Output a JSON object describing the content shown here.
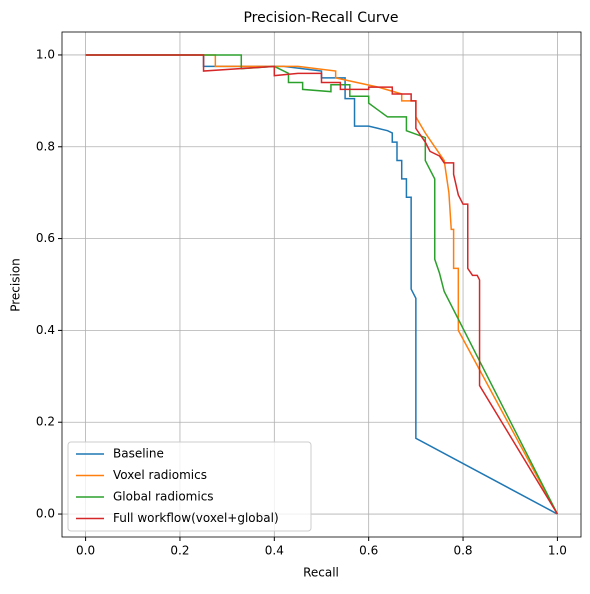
{
  "chart_data": {
    "type": "line",
    "title": "Precision-Recall Curve",
    "xlabel": "Recall",
    "ylabel": "Precision",
    "xlim": [
      -0.05,
      1.05
    ],
    "ylim": [
      -0.05,
      1.05
    ],
    "xticks": [
      {
        "value": 0,
        "label": "0.0"
      },
      {
        "value": 0.2,
        "label": "0.2"
      },
      {
        "value": 0.4,
        "label": "0.4"
      },
      {
        "value": 0.6,
        "label": "0.6"
      },
      {
        "value": 0.8,
        "label": "0.8"
      },
      {
        "value": 1,
        "label": "1.0"
      }
    ],
    "yticks": [
      {
        "value": 0,
        "label": "0.0"
      },
      {
        "value": 0.2,
        "label": "0.2"
      },
      {
        "value": 0.4,
        "label": "0.4"
      },
      {
        "value": 0.6,
        "label": "0.6"
      },
      {
        "value": 0.8,
        "label": "0.8"
      },
      {
        "value": 1,
        "label": "1.0"
      }
    ],
    "grid": true,
    "legend": "lower left",
    "series": [
      {
        "name": "Baseline",
        "color": "#1f77b4",
        "x": [
          0,
          0.25,
          0.25,
          0.42,
          0.5,
          0.5,
          0.55,
          0.55,
          0.57,
          0.57,
          0.6,
          0.62,
          0.64,
          0.65,
          0.65,
          0.66,
          0.66,
          0.67,
          0.67,
          0.68,
          0.68,
          0.69,
          0.69,
          0.7,
          0.7,
          1.0
        ],
        "values": [
          1,
          1,
          0.975,
          0.975,
          0.965,
          0.95,
          0.95,
          0.905,
          0.905,
          0.845,
          0.845,
          0.84,
          0.835,
          0.83,
          0.81,
          0.81,
          0.77,
          0.77,
          0.73,
          0.73,
          0.69,
          0.69,
          0.49,
          0.47,
          0.165,
          0
        ]
      },
      {
        "name": "Voxel radiomics",
        "color": "#ff7f0e",
        "x": [
          0,
          0.275,
          0.275,
          0.45,
          0.53,
          0.53,
          0.62,
          0.67,
          0.67,
          0.7,
          0.7,
          0.72,
          0.74,
          0.76,
          0.77,
          0.775,
          0.78,
          0.78,
          0.79,
          0.79,
          1.0
        ],
        "values": [
          1,
          1,
          0.975,
          0.975,
          0.965,
          0.95,
          0.93,
          0.915,
          0.9,
          0.9,
          0.865,
          0.83,
          0.8,
          0.77,
          0.7,
          0.62,
          0.62,
          0.535,
          0.535,
          0.4,
          0
        ]
      },
      {
        "name": "Global radiomics",
        "color": "#2ca02c",
        "x": [
          0,
          0.33,
          0.33,
          0.4,
          0.43,
          0.43,
          0.46,
          0.46,
          0.52,
          0.52,
          0.56,
          0.56,
          0.6,
          0.6,
          0.62,
          0.64,
          0.68,
          0.68,
          0.72,
          0.72,
          0.74,
          0.74,
          0.75,
          0.76,
          1.0
        ],
        "values": [
          1,
          1,
          0.97,
          0.975,
          0.96,
          0.94,
          0.94,
          0.925,
          0.92,
          0.935,
          0.935,
          0.91,
          0.91,
          0.895,
          0.88,
          0.865,
          0.865,
          0.835,
          0.82,
          0.77,
          0.73,
          0.555,
          0.525,
          0.485,
          0
        ]
      },
      {
        "name": "Full workflow(voxel+global)",
        "color": "#d62728",
        "x": [
          0,
          0.25,
          0.25,
          0.4,
          0.4,
          0.45,
          0.5,
          0.5,
          0.54,
          0.54,
          0.6,
          0.6,
          0.65,
          0.65,
          0.69,
          0.69,
          0.7,
          0.7,
          0.72,
          0.73,
          0.75,
          0.76,
          0.78,
          0.78,
          0.79,
          0.8,
          0.81,
          0.81,
          0.82,
          0.83,
          0.835,
          0.835,
          1.0
        ],
        "values": [
          1,
          1,
          0.965,
          0.975,
          0.955,
          0.96,
          0.96,
          0.94,
          0.94,
          0.925,
          0.925,
          0.93,
          0.93,
          0.915,
          0.915,
          0.9,
          0.9,
          0.84,
          0.81,
          0.79,
          0.78,
          0.765,
          0.765,
          0.74,
          0.695,
          0.675,
          0.675,
          0.535,
          0.52,
          0.52,
          0.51,
          0.28,
          0
        ]
      }
    ]
  }
}
